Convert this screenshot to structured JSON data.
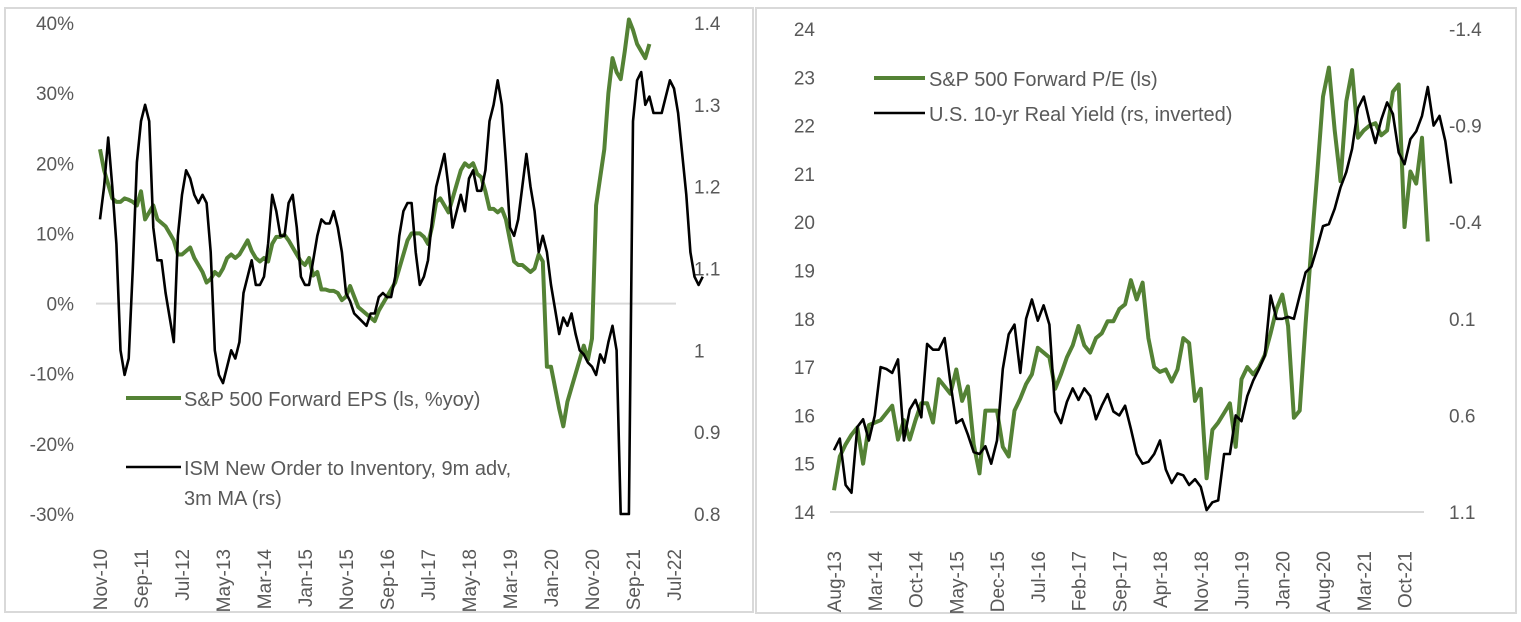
{
  "chart_data": [
    {
      "type": "line",
      "id": "left",
      "title": "",
      "xlabel": "",
      "ylabel": "",
      "y_left_lim": [
        -0.3,
        0.4
      ],
      "y_left_ticks": [
        "40%",
        "30%",
        "20%",
        "10%",
        "0%",
        "-10%",
        "-20%",
        "-30%"
      ],
      "y_left_tick_values": [
        0.4,
        0.3,
        0.2,
        0.1,
        0.0,
        -0.1,
        -0.2,
        -0.3
      ],
      "y_right_lim": [
        0.8,
        1.4
      ],
      "y_right_ticks": [
        "1.4",
        "1.3",
        "1.2",
        "1.1",
        "1",
        "0.9",
        "0.8"
      ],
      "y_right_tick_values": [
        1.4,
        1.3,
        1.2,
        1.1,
        1.0,
        0.9,
        0.8
      ],
      "x_start": "Nov-10",
      "x_months": 141,
      "x_ticks": [
        "Nov-10",
        "Sep-11",
        "Jul-12",
        "May-13",
        "Mar-14",
        "Jan-15",
        "Nov-15",
        "Sep-16",
        "Jul-17",
        "May-18",
        "Mar-19",
        "Jan-20",
        "Nov-20",
        "Sep-21",
        "Jul-22"
      ],
      "x_tick_step_months": 10,
      "grid": false,
      "zero_line": true,
      "legend_position": "bottom-left",
      "series": [
        {
          "name": "S&P 500 Forward EPS (ls, %yoy)",
          "axis": "left",
          "color": "#548235",
          "start_index": 0,
          "values": [
            0.22,
            0.19,
            0.17,
            0.15,
            0.145,
            0.145,
            0.15,
            0.148,
            0.145,
            0.14,
            0.16,
            0.12,
            0.13,
            0.14,
            0.12,
            0.115,
            0.11,
            0.1,
            0.09,
            0.07,
            0.07,
            0.075,
            0.08,
            0.065,
            0.055,
            0.045,
            0.03,
            0.035,
            0.045,
            0.04,
            0.05,
            0.065,
            0.07,
            0.065,
            0.07,
            0.08,
            0.09,
            0.075,
            0.065,
            0.06,
            0.065,
            0.06,
            0.085,
            0.095,
            0.095,
            0.098,
            0.09,
            0.08,
            0.07,
            0.06,
            0.055,
            0.065,
            0.04,
            0.045,
            0.02,
            0.02,
            0.018,
            0.018,
            0.015,
            0.005,
            0.01,
            0.025,
            0.01,
            -0.005,
            -0.01,
            -0.015,
            -0.02,
            -0.025,
            -0.01,
            0.0,
            0.01,
            0.02,
            0.03,
            0.05,
            0.07,
            0.09,
            0.1,
            0.1,
            0.1,
            0.095,
            0.085,
            0.11,
            0.145,
            0.15,
            0.14,
            0.13,
            0.15,
            0.17,
            0.19,
            0.2,
            0.195,
            0.2,
            0.185,
            0.18,
            0.16,
            0.135,
            0.135,
            0.13,
            0.135,
            0.12,
            0.09,
            0.06,
            0.055,
            0.055,
            0.05,
            0.045,
            0.05,
            0.07,
            0.06,
            -0.09,
            -0.09,
            -0.12,
            -0.15,
            -0.175,
            -0.14,
            -0.12,
            -0.1,
            -0.08,
            -0.06,
            -0.08,
            -0.05,
            0.14,
            0.18,
            0.22,
            0.3,
            0.35,
            0.33,
            0.32,
            0.36,
            0.405,
            0.39,
            0.37,
            0.36,
            0.35,
            0.37
          ]
        },
        {
          "name": "ISM New Order to Inventory, 9m adv, 3m MA (rs)",
          "axis": "right",
          "color": "#000000",
          "start_index": 0,
          "values": [
            1.16,
            1.2,
            1.26,
            1.2,
            1.13,
            1.0,
            0.97,
            0.99,
            1.1,
            1.23,
            1.28,
            1.3,
            1.28,
            1.15,
            1.11,
            1.11,
            1.07,
            1.04,
            1.01,
            1.14,
            1.19,
            1.22,
            1.21,
            1.19,
            1.18,
            1.19,
            1.18,
            1.12,
            1.0,
            0.97,
            0.96,
            0.98,
            1.0,
            0.99,
            1.01,
            1.07,
            1.09,
            1.11,
            1.08,
            1.08,
            1.09,
            1.13,
            1.19,
            1.17,
            1.14,
            1.14,
            1.18,
            1.19,
            1.15,
            1.09,
            1.08,
            1.08,
            1.11,
            1.14,
            1.16,
            1.155,
            1.155,
            1.17,
            1.15,
            1.12,
            1.07,
            1.06,
            1.045,
            1.04,
            1.035,
            1.03,
            1.045,
            1.045,
            1.065,
            1.07,
            1.065,
            1.065,
            1.09,
            1.14,
            1.17,
            1.18,
            1.18,
            1.12,
            1.08,
            1.09,
            1.11,
            1.16,
            1.2,
            1.22,
            1.24,
            1.2,
            1.15,
            1.17,
            1.19,
            1.17,
            1.21,
            1.22,
            1.195,
            1.195,
            1.22,
            1.28,
            1.3,
            1.33,
            1.3,
            1.23,
            1.15,
            1.14,
            1.16,
            1.2,
            1.24,
            1.2,
            1.17,
            1.12,
            1.14,
            1.12,
            1.08,
            1.05,
            1.02,
            1.04,
            1.03,
            1.045,
            1.02,
            1.0,
            0.995,
            0.985,
            0.98,
            0.97,
            0.995,
            0.985,
            1.01,
            1.03,
            1.0,
            0.8,
            0.8,
            0.8,
            1.28,
            1.33,
            1.34,
            1.3,
            1.31,
            1.29,
            1.29,
            1.29,
            1.31,
            1.33,
            1.32,
            1.29,
            1.24,
            1.19,
            1.12,
            1.09,
            1.08,
            1.09
          ]
        }
      ],
      "legend": [
        {
          "label": "S&P 500 Forward EPS (ls, %yoy)",
          "color": "#548235"
        },
        {
          "label": "ISM New Order to Inventory, 9m adv,",
          "label_line2": "3m MA (rs)",
          "color": "#000000"
        }
      ]
    },
    {
      "type": "line",
      "id": "right",
      "title": "",
      "xlabel": "",
      "ylabel": "",
      "y_left_lim": [
        14,
        24
      ],
      "y_left_ticks": [
        "24",
        "23",
        "22",
        "21",
        "20",
        "19",
        "18",
        "17",
        "16",
        "15",
        "14"
      ],
      "y_left_tick_values": [
        24,
        23,
        22,
        21,
        20,
        19,
        18,
        17,
        16,
        15,
        14
      ],
      "y_right_lim": [
        -1.4,
        1.1
      ],
      "y_right_inverted": true,
      "y_right_ticks": [
        "-1.4",
        "-0.9",
        "-0.4",
        "0.1",
        "0.6",
        "1.1"
      ],
      "y_right_tick_values": [
        -1.4,
        -0.9,
        -0.4,
        0.1,
        0.6,
        1.1
      ],
      "x_start": "Aug-13",
      "x_months": 102,
      "x_ticks": [
        "Aug-13",
        "Mar-14",
        "Oct-14",
        "May-15",
        "Dec-15",
        "Jul-16",
        "Feb-17",
        "Sep-17",
        "Apr-18",
        "Nov-18",
        "Jun-19",
        "Jan-20",
        "Aug-20",
        "Mar-21",
        "Oct-21"
      ],
      "x_tick_step_months": 7,
      "grid": false,
      "legend_position": "top-left",
      "series": [
        {
          "name": "S&P 500 Forward P/E (ls)",
          "axis": "left",
          "color": "#548235",
          "values": [
            14.45,
            15.15,
            15.4,
            15.6,
            15.75,
            15.0,
            15.8,
            15.85,
            15.9,
            16.05,
            16.2,
            15.5,
            15.9,
            15.5,
            15.9,
            16.25,
            16.25,
            15.85,
            16.75,
            16.6,
            16.45,
            16.95,
            16.3,
            16.6,
            15.4,
            14.8,
            16.1,
            16.1,
            16.1,
            15.35,
            15.15,
            16.1,
            16.35,
            16.65,
            16.85,
            17.4,
            17.3,
            17.2,
            16.55,
            16.85,
            17.2,
            17.45,
            17.85,
            17.45,
            17.3,
            17.6,
            17.7,
            17.95,
            17.95,
            18.2,
            18.3,
            18.8,
            18.4,
            18.75,
            17.6,
            17.0,
            16.9,
            16.95,
            16.7,
            16.95,
            17.6,
            17.5,
            16.3,
            16.55,
            14.7,
            15.7,
            15.85,
            16.05,
            16.25,
            15.35,
            16.75,
            17.0,
            16.85,
            17.0,
            17.25,
            17.7,
            18.2,
            18.5,
            17.85,
            15.95,
            16.1,
            17.9,
            19.5,
            21.0,
            22.6,
            23.2,
            21.9,
            20.85,
            22.5,
            23.15,
            21.75,
            21.9,
            22.0,
            22.05,
            21.8,
            21.9,
            22.7,
            22.85,
            19.9,
            21.05,
            20.8,
            21.75,
            19.6
          ]
        },
        {
          "name": "U.S. 10-yr Real Yield (rs, inverted)",
          "axis": "right",
          "color": "#000000",
          "values": [
            0.78,
            0.72,
            0.96,
            1.0,
            0.66,
            0.62,
            0.73,
            0.6,
            0.35,
            0.36,
            0.38,
            0.31,
            0.73,
            0.57,
            0.52,
            0.61,
            0.23,
            0.26,
            0.26,
            0.2,
            0.43,
            0.64,
            0.62,
            0.7,
            0.79,
            0.8,
            0.76,
            0.85,
            0.73,
            0.36,
            0.18,
            0.13,
            0.38,
            0.1,
            -0.0,
            0.11,
            0.03,
            0.13,
            0.58,
            0.64,
            0.53,
            0.46,
            0.52,
            0.46,
            0.5,
            0.62,
            0.55,
            0.49,
            0.58,
            0.6,
            0.55,
            0.67,
            0.8,
            0.85,
            0.84,
            0.8,
            0.73,
            0.88,
            0.95,
            0.9,
            0.91,
            0.96,
            0.93,
            0.97,
            1.09,
            1.05,
            1.04,
            0.8,
            0.8,
            0.6,
            0.63,
            0.5,
            0.42,
            0.36,
            0.29,
            -0.02,
            0.1,
            0.1,
            0.09,
            0.1,
            -0.02,
            -0.14,
            -0.17,
            -0.27,
            -0.38,
            -0.39,
            -0.47,
            -0.58,
            -0.66,
            -0.78,
            -0.99,
            -1.05,
            -0.92,
            -0.81,
            -0.93,
            -1.02,
            -0.96,
            -0.76,
            -0.7,
            -0.83,
            -0.87,
            -0.95,
            -1.1,
            -0.9,
            -0.95,
            -0.82,
            -0.6
          ]
        }
      ],
      "legend": [
        {
          "label": "S&P 500 Forward P/E (ls)",
          "color": "#548235"
        },
        {
          "label": "U.S. 10-yr Real Yield (rs, inverted)",
          "color": "#000000"
        }
      ]
    }
  ]
}
